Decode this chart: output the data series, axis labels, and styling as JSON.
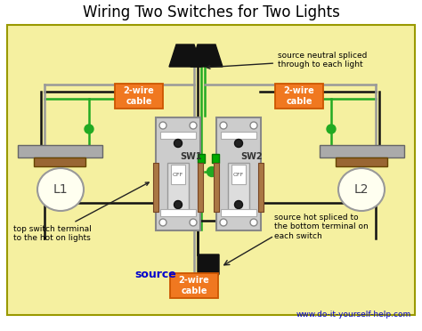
{
  "title": "Wiring Two Switches for Two Lights",
  "bg_color": "#f5f0a0",
  "border_color": "#999900",
  "title_color": "#000000",
  "title_fontsize": 12,
  "subtitle_url": "www.do-it-yourself-help.com",
  "subtitle_color": "#0000cc",
  "label_L1": "L1",
  "label_L2": "L2",
  "label_SW1": "SW1",
  "label_SW2": "SW2",
  "label_source": "source",
  "cable_label": "2-wire\ncable",
  "cable_color": "#f07820",
  "wire_black": "#111111",
  "wire_gray": "#999999",
  "wire_green": "#22aa22",
  "wire_lw": 1.8,
  "ann_fontsize": 6.5,
  "ann1": "source neutral spliced\nthrough to each light",
  "ann2": "top switch terminal\nto the hot on lights",
  "ann3": "source hot spliced to\nthe bottom terminal on\neach switch"
}
